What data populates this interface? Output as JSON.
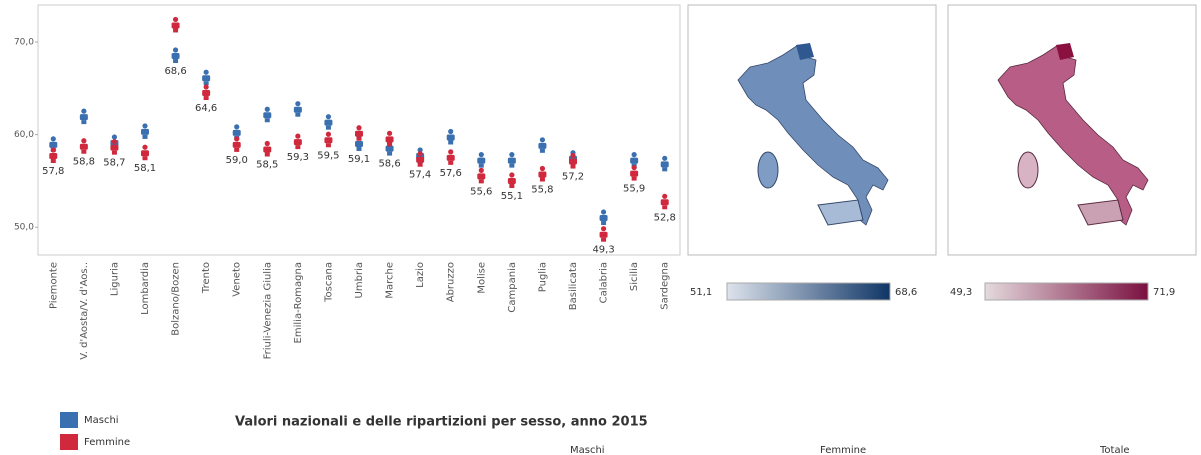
{
  "chart_data": {
    "type": "dot",
    "categories": [
      "Piemonte",
      "V. d'Aosta/V. d'Aos..",
      "Liguria",
      "Lombardia",
      "Bolzano/Bozen",
      "Trento",
      "Veneto",
      "Friuli-Venezia Giulia",
      "Emilia-Romagna",
      "Toscana",
      "Umbria",
      "Marche",
      "Lazio",
      "Abruzzo",
      "Molise",
      "Campania",
      "Puglia",
      "Basilicata",
      "Calabria",
      "Sicilia",
      "Sardegna"
    ],
    "series": [
      {
        "name": "Maschi",
        "color": "#3a6fb0",
        "values": [
          59.0,
          62.0,
          59.2,
          60.4,
          68.6,
          66.2,
          60.3,
          62.2,
          62.8,
          61.4,
          59.1,
          58.6,
          57.8,
          59.8,
          57.3,
          57.3,
          58.9,
          57.5,
          51.1,
          57.3,
          56.9
        ],
        "value_labels": [
          null,
          null,
          null,
          null,
          "68,6",
          null,
          null,
          null,
          null,
          null,
          "59,1",
          "58,6",
          null,
          null,
          null,
          null,
          null,
          null,
          null,
          null,
          null
        ]
      },
      {
        "name": "Femmine",
        "color": "#d0283c",
        "values": [
          57.8,
          58.8,
          58.7,
          58.1,
          71.9,
          64.6,
          59.0,
          58.5,
          59.3,
          59.5,
          60.2,
          59.6,
          57.4,
          57.6,
          55.6,
          55.1,
          55.8,
          57.2,
          49.3,
          55.9,
          52.8
        ],
        "value_labels": [
          "57,8",
          "58,8",
          "58,7",
          "58,1",
          null,
          "64,6",
          "59,0",
          "58,5",
          "59,3",
          "59,5",
          null,
          null,
          "57,4",
          "57,6",
          "55,6",
          "55,1",
          "55,8",
          "57,2",
          "49,3",
          "55,9",
          "52,8"
        ]
      }
    ],
    "ylim": [
      47,
      74
    ],
    "yticks": [
      {
        "value": 50,
        "label": "50,0"
      },
      {
        "value": 60,
        "label": "60,0"
      },
      {
        "value": 70,
        "label": "70,0"
      }
    ],
    "grid": false
  },
  "maps": [
    {
      "legend_min": "51,1",
      "legend_max": "68,6",
      "color_low": "#dde3ec",
      "color_high": "#0f3566"
    },
    {
      "legend_min": "49,3",
      "legend_max": "71,9",
      "color_low": "#e4dadd",
      "color_high": "#7a1040"
    }
  ],
  "footer": {
    "title": "Valori nazionali e delle ripartizioni per sesso,  anno 2015",
    "columns": [
      "Maschi",
      "Femmine",
      "Totale"
    ]
  }
}
